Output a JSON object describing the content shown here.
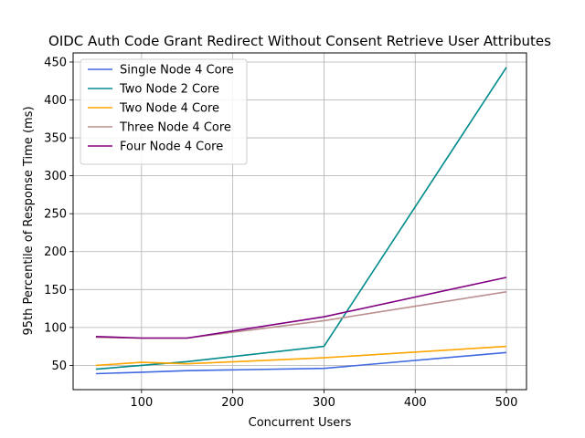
{
  "chart_data": {
    "type": "line",
    "title": "OIDC Auth Code Grant Redirect Without Consent Retrieve User Attributes",
    "xlabel": "Concurrent Users",
    "ylabel": "95th Percentile of Response Time (ms)",
    "x": [
      50,
      100,
      150,
      300,
      500
    ],
    "xlim": [
      25,
      522
    ],
    "ylim": [
      18,
      462
    ],
    "xticks": [
      100,
      200,
      300,
      400,
      500
    ],
    "yticks": [
      50,
      100,
      150,
      200,
      250,
      300,
      350,
      400,
      450
    ],
    "grid": true,
    "legend_position": "top-left",
    "series": [
      {
        "name": "Single Node 4 Core",
        "color": "#4169e1",
        "values": [
          39,
          41,
          43,
          46,
          67
        ]
      },
      {
        "name": "Two Node 2 Core",
        "color": "#008b8b",
        "values": [
          45,
          50,
          55,
          75,
          443
        ]
      },
      {
        "name": "Two Node 4 Core",
        "color": "#ffa500",
        "values": [
          50,
          54,
          52,
          60,
          75
        ]
      },
      {
        "name": "Three Node 4 Core",
        "color": "#bc8f8f",
        "values": [
          87,
          86,
          86,
          109,
          147
        ]
      },
      {
        "name": "Four Node 4 Core",
        "color": "#800080",
        "values": [
          88,
          86,
          86,
          114,
          166
        ]
      }
    ]
  }
}
